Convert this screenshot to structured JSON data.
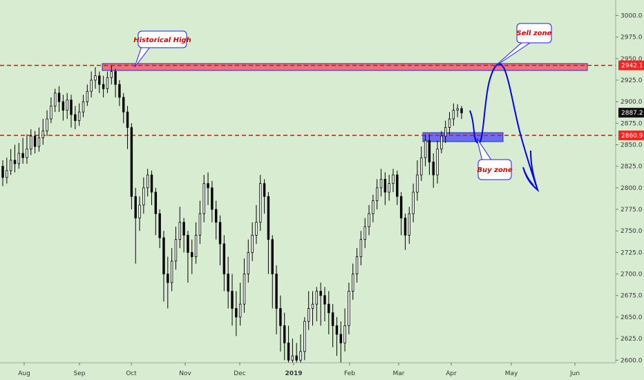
{
  "chart_data": {
    "type": "candlestick",
    "y_axis": {
      "range": [
        2597,
        3018
      ],
      "ticks": [
        "3000.0",
        "2975.0",
        "2950.0",
        "2925.0",
        "2900.0",
        "2875.0",
        "2850.0",
        "2825.0",
        "2800.0",
        "2775.0",
        "2750.0",
        "2725.0",
        "2700.0",
        "2675.0",
        "2650.0",
        "2625.0",
        "2600.0"
      ]
    },
    "x_axis": {
      "labels": [
        {
          "text": "Aug",
          "bold": false
        },
        {
          "text": "Sep",
          "bold": false
        },
        {
          "text": "Oct",
          "bold": false
        },
        {
          "text": "Nov",
          "bold": false
        },
        {
          "text": "Dec",
          "bold": false
        },
        {
          "text": "2019",
          "bold": true
        },
        {
          "text": "Feb",
          "bold": false
        },
        {
          "text": "Mar",
          "bold": false
        },
        {
          "text": "Apr",
          "bold": false
        },
        {
          "text": "May",
          "bold": false
        },
        {
          "text": "Jun",
          "bold": false
        }
      ]
    },
    "grid": false,
    "candles": [
      [
        2825,
        2812,
        2832,
        2802
      ],
      [
        2812,
        2820,
        2835,
        2805
      ],
      [
        2820,
        2832,
        2845,
        2815
      ],
      [
        2832,
        2828,
        2850,
        2818
      ],
      [
        2828,
        2840,
        2852,
        2822
      ],
      [
        2840,
        2835,
        2858,
        2828
      ],
      [
        2835,
        2845,
        2862,
        2828
      ],
      [
        2845,
        2860,
        2868,
        2838
      ],
      [
        2860,
        2848,
        2866,
        2840
      ],
      [
        2848,
        2858,
        2870,
        2842
      ],
      [
        2858,
        2866,
        2880,
        2850
      ],
      [
        2866,
        2880,
        2890,
        2860
      ],
      [
        2880,
        2895,
        2905,
        2875
      ],
      [
        2895,
        2910,
        2915,
        2888
      ],
      [
        2910,
        2900,
        2918,
        2888
      ],
      [
        2900,
        2890,
        2908,
        2878
      ],
      [
        2890,
        2902,
        2910,
        2880
      ],
      [
        2902,
        2885,
        2908,
        2870
      ],
      [
        2885,
        2878,
        2895,
        2868
      ],
      [
        2878,
        2888,
        2898,
        2872
      ],
      [
        2888,
        2900,
        2908,
        2882
      ],
      [
        2900,
        2912,
        2920,
        2895
      ],
      [
        2912,
        2925,
        2935,
        2905
      ],
      [
        2925,
        2930,
        2940,
        2915
      ],
      [
        2930,
        2920,
        2935,
        2910
      ],
      [
        2920,
        2915,
        2930,
        2905
      ],
      [
        2915,
        2928,
        2935,
        2910
      ],
      [
        2928,
        2935,
        2942,
        2920
      ],
      [
        2935,
        2920,
        2938,
        2905
      ],
      [
        2920,
        2905,
        2925,
        2895
      ],
      [
        2905,
        2888,
        2910,
        2875
      ],
      [
        2888,
        2870,
        2895,
        2845
      ],
      [
        2870,
        2790,
        2875,
        2775
      ],
      [
        2790,
        2765,
        2800,
        2712
      ],
      [
        2765,
        2780,
        2790,
        2750
      ],
      [
        2780,
        2800,
        2812,
        2770
      ],
      [
        2800,
        2815,
        2822,
        2790
      ],
      [
        2815,
        2795,
        2820,
        2780
      ],
      [
        2795,
        2770,
        2800,
        2745
      ],
      [
        2770,
        2742,
        2775,
        2730
      ],
      [
        2742,
        2700,
        2750,
        2668
      ],
      [
        2700,
        2690,
        2720,
        2660
      ],
      [
        2690,
        2715,
        2730,
        2680
      ],
      [
        2715,
        2740,
        2755,
        2705
      ],
      [
        2740,
        2760,
        2778,
        2730
      ],
      [
        2760,
        2745,
        2765,
        2725
      ],
      [
        2745,
        2725,
        2750,
        2690
      ],
      [
        2725,
        2720,
        2740,
        2700
      ],
      [
        2720,
        2745,
        2760,
        2712
      ],
      [
        2745,
        2770,
        2785,
        2735
      ],
      [
        2770,
        2805,
        2815,
        2760
      ],
      [
        2805,
        2800,
        2818,
        2780
      ],
      [
        2800,
        2775,
        2808,
        2760
      ],
      [
        2775,
        2760,
        2785,
        2740
      ],
      [
        2760,
        2735,
        2768,
        2710
      ],
      [
        2735,
        2700,
        2745,
        2680
      ],
      [
        2700,
        2680,
        2720,
        2660
      ],
      [
        2680,
        2660,
        2700,
        2640
      ],
      [
        2660,
        2650,
        2680,
        2628
      ],
      [
        2650,
        2665,
        2690,
        2640
      ],
      [
        2665,
        2700,
        2718,
        2655
      ],
      [
        2700,
        2725,
        2740,
        2690
      ],
      [
        2725,
        2745,
        2760,
        2715
      ],
      [
        2745,
        2760,
        2780,
        2735
      ],
      [
        2760,
        2805,
        2815,
        2750
      ],
      [
        2805,
        2790,
        2810,
        2770
      ],
      [
        2790,
        2740,
        2795,
        2700
      ],
      [
        2740,
        2700,
        2745,
        2660
      ],
      [
        2700,
        2660,
        2710,
        2630
      ],
      [
        2660,
        2640,
        2675,
        2610
      ],
      [
        2640,
        2620,
        2655,
        2600
      ],
      [
        2620,
        2600,
        2640,
        2597
      ],
      [
        2600,
        2605,
        2625,
        2597
      ],
      [
        2605,
        2600,
        2620,
        2597
      ],
      [
        2600,
        2610,
        2630,
        2597
      ],
      [
        2610,
        2645,
        2650,
        2600
      ],
      [
        2645,
        2660,
        2680,
        2635
      ],
      [
        2660,
        2665,
        2680,
        2640
      ],
      [
        2665,
        2680,
        2685,
        2645
      ],
      [
        2680,
        2675,
        2690,
        2640
      ],
      [
        2675,
        2665,
        2685,
        2645
      ],
      [
        2665,
        2655,
        2680,
        2630
      ],
      [
        2655,
        2640,
        2665,
        2615
      ],
      [
        2640,
        2630,
        2650,
        2605
      ],
      [
        2630,
        2620,
        2645,
        2597
      ],
      [
        2620,
        2640,
        2660,
        2610
      ],
      [
        2640,
        2680,
        2690,
        2630
      ],
      [
        2680,
        2700,
        2712,
        2670
      ],
      [
        2700,
        2720,
        2730,
        2690
      ],
      [
        2720,
        2740,
        2750,
        2710
      ],
      [
        2740,
        2755,
        2765,
        2730
      ],
      [
        2755,
        2770,
        2780,
        2745
      ],
      [
        2770,
        2785,
        2792,
        2760
      ],
      [
        2785,
        2800,
        2810,
        2775
      ],
      [
        2800,
        2810,
        2822,
        2790
      ],
      [
        2810,
        2795,
        2818,
        2780
      ],
      [
        2795,
        2805,
        2815,
        2785
      ],
      [
        2805,
        2815,
        2822,
        2795
      ],
      [
        2815,
        2790,
        2820,
        2780
      ],
      [
        2790,
        2765,
        2795,
        2745
      ],
      [
        2765,
        2745,
        2770,
        2728
      ],
      [
        2745,
        2770,
        2778,
        2735
      ],
      [
        2770,
        2795,
        2805,
        2760
      ],
      [
        2795,
        2815,
        2832,
        2785
      ],
      [
        2815,
        2835,
        2848,
        2808
      ],
      [
        2835,
        2855,
        2862,
        2825
      ],
      [
        2855,
        2830,
        2862,
        2815
      ],
      [
        2830,
        2815,
        2840,
        2800
      ],
      [
        2815,
        2845,
        2855,
        2805
      ],
      [
        2845,
        2860,
        2866,
        2840
      ],
      [
        2860,
        2870,
        2878,
        2852
      ],
      [
        2870,
        2880,
        2888,
        2862
      ],
      [
        2880,
        2890,
        2898,
        2872
      ],
      [
        2890,
        2892,
        2897,
        2882
      ],
      [
        2892,
        2887,
        2895,
        2880
      ]
    ],
    "levels": [
      {
        "value": 2942.1,
        "label": "2942.1",
        "color": "#ff0000"
      },
      {
        "value": 2860.9,
        "label": "2860.9",
        "color": "#ff0000"
      }
    ],
    "last_price": {
      "value": 2887.2,
      "label": "2887.2"
    },
    "zones": [
      {
        "name": "Sell zone band",
        "color": "#ff0000"
      },
      {
        "name": "Buy zone band",
        "color": "#0000ff"
      }
    ],
    "annotations": {
      "historical_high": "Historical High",
      "sell_zone": "Sell zone",
      "buy_zone": "Buy zone"
    },
    "colors": {
      "background": "#d8ecd2",
      "candle": "#000000",
      "level_line": "#ff0000",
      "projection": "#0000ff",
      "callout_text": "#e00000",
      "callout_border": "#1a1aff"
    }
  }
}
